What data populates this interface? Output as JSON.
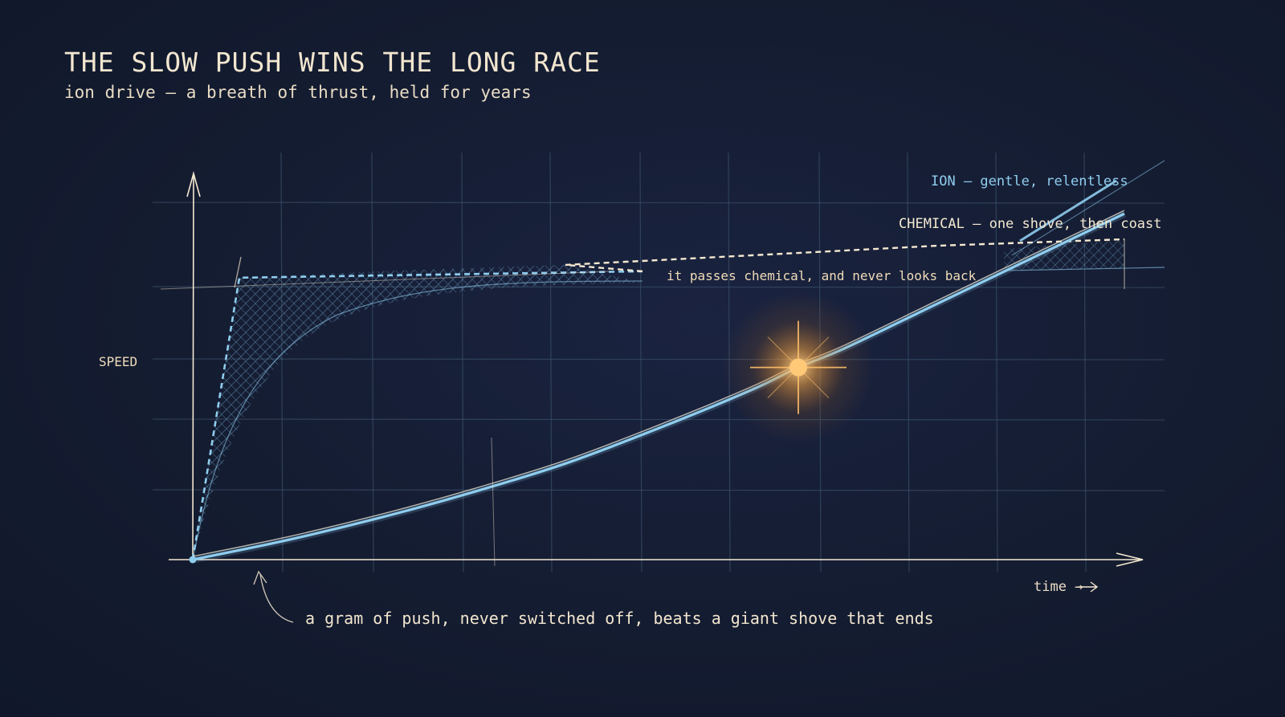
{
  "title": "THE SLOW PUSH WINS THE LONG RACE",
  "subtitle": "ion drive — a breath of thrust, held for years",
  "footnote": "a gram of push, never switched off, beats a giant shove that ends",
  "colors": {
    "background": "#141c31",
    "ion": "#8fcdee",
    "chemical": "#f4e8d0",
    "highlight": "#ffc06a",
    "grid": "#3a4f68"
  },
  "chart_data": {
    "type": "line",
    "ylabel": "SPEED",
    "xlabel": "time →",
    "grid": true,
    "axes_ticks": false,
    "series": [
      {
        "name": "CHEMICAL — one shove, then coast",
        "style": "dashed",
        "x": [
          0,
          0.05,
          0.2,
          0.4,
          0.6,
          0.8,
          1.0
        ],
        "y": [
          0,
          0.88,
          0.9,
          0.92,
          0.95,
          0.98,
          1.0
        ]
      },
      {
        "name": "ION — gentle, relentless",
        "style": "solid",
        "x": [
          0,
          0.1,
          0.2,
          0.3,
          0.4,
          0.5,
          0.6,
          0.65,
          0.7,
          0.8,
          0.9,
          1.0
        ],
        "y": [
          0,
          0.06,
          0.13,
          0.21,
          0.3,
          0.41,
          0.53,
          0.6,
          0.66,
          0.8,
          0.94,
          1.08
        ]
      }
    ],
    "annotations": [
      {
        "text": "it passes chemical, and never looks back",
        "x": 0.65,
        "y": 0.6
      }
    ]
  }
}
